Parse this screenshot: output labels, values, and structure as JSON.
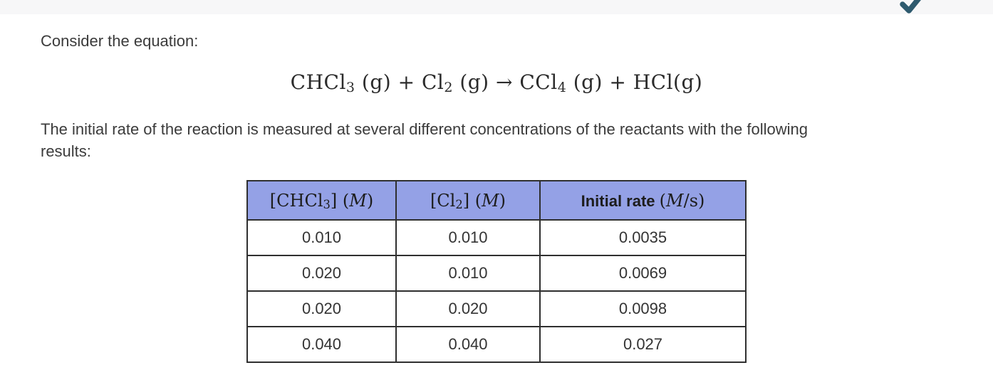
{
  "top_bar": {
    "background": "#f7f7f8",
    "check_icon": {
      "name": "checkmark-icon",
      "color": "#2e5a6e"
    }
  },
  "intro": {
    "text": "Consider the equation:"
  },
  "equation": {
    "segments": [
      {
        "text": "CHCl"
      },
      {
        "text": "3",
        "sub": true
      },
      {
        "text": " (g) + Cl"
      },
      {
        "text": "2",
        "sub": true
      },
      {
        "text": " (g) → CCl"
      },
      {
        "text": "4",
        "sub": true
      },
      {
        "text": " (g) + HCl(g)"
      }
    ]
  },
  "description": {
    "lines": [
      "The initial rate of the reaction is measured at several different concentrations of the reactants with the following",
      "results:"
    ]
  },
  "table": {
    "header_background": "#94a1e6",
    "border_color": "#2f2f2f",
    "headers": [
      {
        "segments": [
          {
            "text": "[CHCl"
          },
          {
            "text": "3",
            "sub": true
          },
          {
            "text": "] ("
          },
          {
            "text": "M",
            "italic": true
          },
          {
            "text": ")"
          }
        ]
      },
      {
        "segments": [
          {
            "text": "[Cl"
          },
          {
            "text": "2",
            "sub": true
          },
          {
            "text": "] ("
          },
          {
            "text": "M",
            "italic": true
          },
          {
            "text": ")"
          }
        ]
      },
      {
        "segments": [
          {
            "text": "Initial rate ",
            "bold_sans": true
          },
          {
            "text": "("
          },
          {
            "text": "M",
            "italic": true
          },
          {
            "text": "/s)"
          }
        ]
      }
    ],
    "rows": [
      [
        "0.010",
        "0.010",
        "0.0035"
      ],
      [
        "0.020",
        "0.010",
        "0.0069"
      ],
      [
        "0.020",
        "0.020",
        "0.0098"
      ],
      [
        "0.040",
        "0.040",
        "0.027"
      ]
    ]
  }
}
